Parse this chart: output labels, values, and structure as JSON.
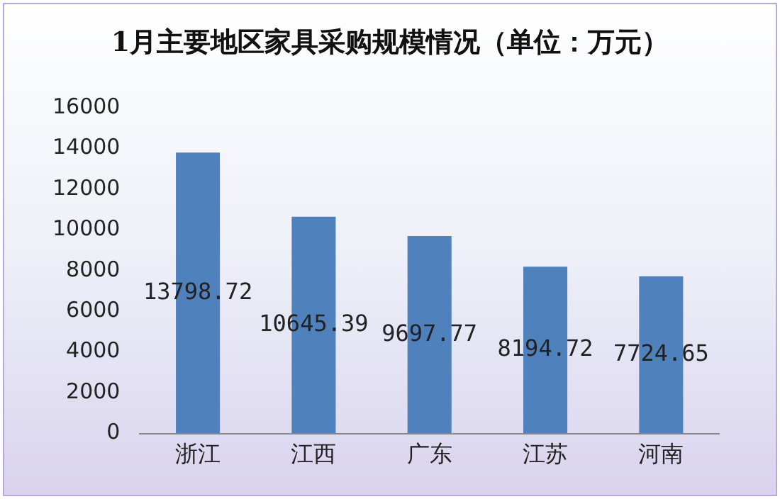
{
  "chart_data": {
    "type": "bar",
    "title": "1月主要地区家具采购规模情况（单位：万元）",
    "categories": [
      "浙江",
      "江西",
      "广东",
      "江苏",
      "河南"
    ],
    "values": [
      13798.72,
      10645.39,
      9697.77,
      8194.72,
      7724.65
    ],
    "color": "#4f81bd",
    "ylim": [
      0,
      16000
    ],
    "yticks": [
      0,
      2000,
      4000,
      6000,
      8000,
      10000,
      12000,
      14000,
      16000
    ],
    "grid": false,
    "legend": false,
    "data_labels": true
  }
}
